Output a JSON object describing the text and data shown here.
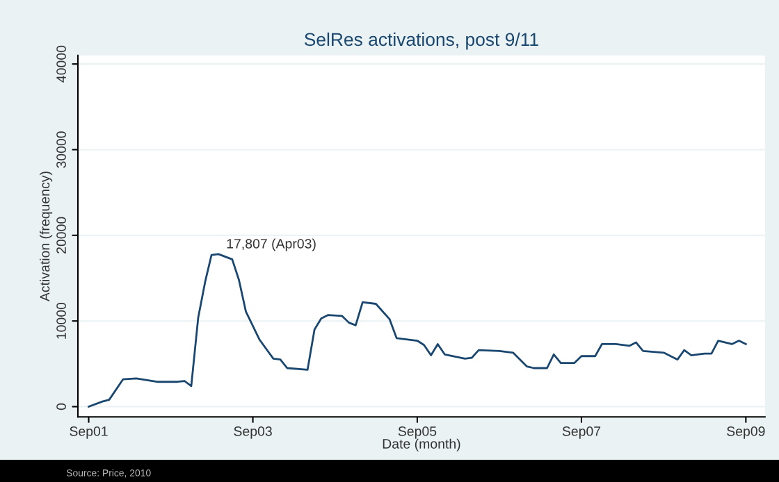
{
  "chart_data": {
    "type": "line",
    "title": "SelRes activations, post 9/11",
    "xlabel": "Date (month)",
    "ylabel": "Activation (frequency)",
    "x": [
      "2001-09",
      "2001-11",
      "2001-12",
      "2002-02",
      "2002-04",
      "2002-07",
      "2002-10",
      "2002-11",
      "2002-12",
      "2003-01",
      "2003-02",
      "2003-03",
      "2003-04",
      "2003-06",
      "2003-07",
      "2003-08",
      "2003-10",
      "2003-12",
      "2004-01",
      "2004-02",
      "2004-05",
      "2004-06",
      "2004-07",
      "2004-08",
      "2004-10",
      "2004-11",
      "2004-12",
      "2005-01",
      "2005-03",
      "2005-05",
      "2005-06",
      "2005-09",
      "2005-10",
      "2005-11",
      "2005-12",
      "2006-01",
      "2006-04",
      "2006-05",
      "2006-06",
      "2006-09",
      "2006-11",
      "2007-01",
      "2007-02",
      "2007-04",
      "2007-05",
      "2007-06",
      "2007-08",
      "2007-09",
      "2007-11",
      "2007-12",
      "2008-02",
      "2008-04",
      "2008-05",
      "2008-06",
      "2008-09",
      "2008-11",
      "2008-12",
      "2009-01",
      "2009-03",
      "2009-04",
      "2009-05",
      "2009-07",
      "2009-08",
      "2009-09"
    ],
    "series": [
      {
        "color": "#1a476f",
        "values": [
          0,
          600,
          800,
          3200,
          3300,
          2900,
          2900,
          3000,
          2400,
          10400,
          14600,
          17700,
          17807,
          17200,
          14800,
          11100,
          7800,
          5600,
          5500,
          4500,
          4300,
          9000,
          10300,
          10700,
          10600,
          9800,
          9500,
          12200,
          12000,
          10200,
          8000,
          7700,
          7200,
          6000,
          7300,
          6100,
          5600,
          5700,
          6600,
          6500,
          6300,
          4700,
          4500,
          4500,
          6100,
          5100,
          5100,
          5900,
          5900,
          7300,
          7300,
          7100,
          7500,
          6500,
          6300,
          5500,
          6600,
          6000,
          6200,
          6200,
          7700,
          7300,
          7700,
          7300
        ]
      }
    ],
    "xlim": [
      "2001-07-15",
      "2009-11-25"
    ],
    "xticks": [
      {
        "value": "2001-09",
        "label": "Sep01"
      },
      {
        "value": "2003-09",
        "label": "Sep03"
      },
      {
        "value": "2005-09",
        "label": "Sep05"
      },
      {
        "value": "2007-09",
        "label": "Sep07"
      },
      {
        "value": "2009-09",
        "label": "Sep09"
      }
    ],
    "ylim": [
      -1200,
      41000
    ],
    "yticks": [
      0,
      10000,
      20000,
      30000,
      40000
    ],
    "grid": "y",
    "line_style": "solid",
    "marker": "none",
    "annotations": [
      {
        "text": "17,807 (Apr03)",
        "x": "2003-04",
        "y": 17807
      },
      "Source: Price, 2010"
    ]
  }
}
